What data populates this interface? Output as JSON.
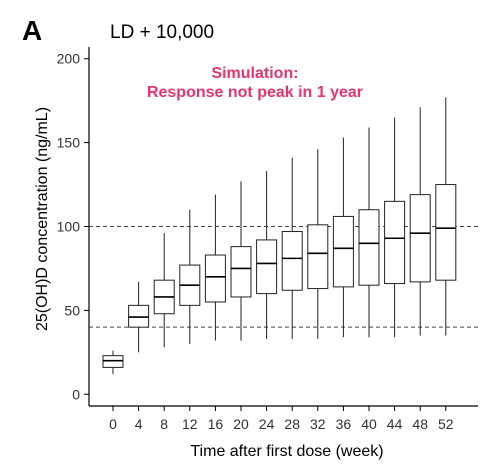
{
  "panel_label": "A",
  "chart_data": {
    "type": "boxplot",
    "title": "LD + 10,000",
    "annotation": [
      "Simulation:",
      "Response not peak in 1 year"
    ],
    "xlabel": "Time after first dose (week)",
    "ylabel": "25(OH)D concentration (ng/mL)",
    "ylim": [
      -7,
      207
    ],
    "yticks": [
      0,
      50,
      100,
      150,
      200
    ],
    "reference_lines": [
      40,
      100
    ],
    "grid": false,
    "categories": [
      "0",
      "4",
      "8",
      "12",
      "16",
      "20",
      "24",
      "28",
      "32",
      "36",
      "40",
      "44",
      "48",
      "52"
    ],
    "series": [
      {
        "stats": [
          {
            "min": 12,
            "q1": 16,
            "median": 20,
            "q3": 23,
            "max": 26
          },
          {
            "min": 25,
            "q1": 40,
            "median": 46,
            "q3": 53,
            "max": 67
          },
          {
            "min": 28,
            "q1": 48,
            "median": 58,
            "q3": 68,
            "max": 96
          },
          {
            "min": 30,
            "q1": 53,
            "median": 65,
            "q3": 77,
            "max": 110
          },
          {
            "min": 32,
            "q1": 55,
            "median": 70,
            "q3": 83,
            "max": 119
          },
          {
            "min": 32,
            "q1": 58,
            "median": 75,
            "q3": 88,
            "max": 127
          },
          {
            "min": 33,
            "q1": 60,
            "median": 78,
            "q3": 92,
            "max": 133
          },
          {
            "min": 33,
            "q1": 62,
            "median": 81,
            "q3": 97,
            "max": 141
          },
          {
            "min": 33,
            "q1": 63,
            "median": 84,
            "q3": 101,
            "max": 146
          },
          {
            "min": 34,
            "q1": 64,
            "median": 87,
            "q3": 106,
            "max": 153
          },
          {
            "min": 34,
            "q1": 65,
            "median": 90,
            "q3": 110,
            "max": 159
          },
          {
            "min": 34,
            "q1": 66,
            "median": 93,
            "q3": 115,
            "max": 165
          },
          {
            "min": 35,
            "q1": 67,
            "median": 96,
            "q3": 119,
            "max": 171
          },
          {
            "min": 35,
            "q1": 68,
            "median": 99,
            "q3": 125,
            "max": 177
          }
        ]
      }
    ]
  }
}
